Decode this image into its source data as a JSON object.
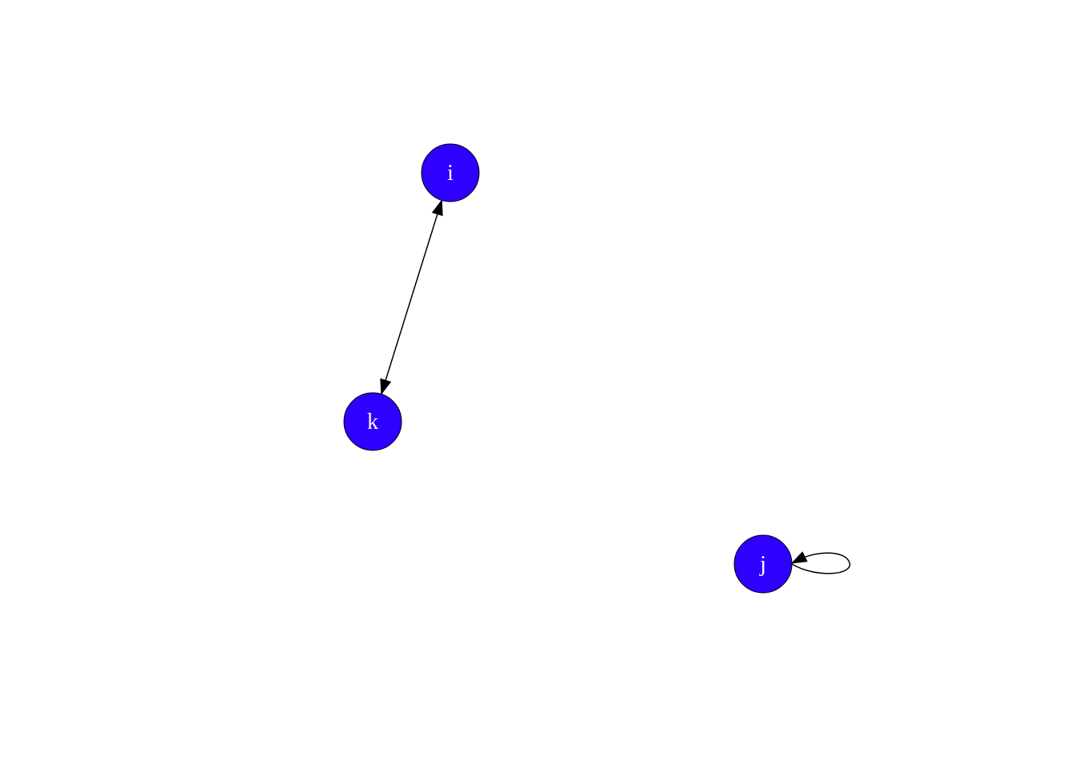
{
  "graph": {
    "directed": true,
    "node_fill": "#2f00ff",
    "node_stroke": "#000000",
    "label_color": "#ffffff",
    "edge_color": "#000000",
    "nodes": [
      {
        "id": "i",
        "label": "i"
      },
      {
        "id": "k",
        "label": "k"
      },
      {
        "id": "j",
        "label": "j"
      }
    ],
    "edges": [
      {
        "from": "i",
        "to": "k"
      },
      {
        "from": "k",
        "to": "i"
      },
      {
        "from": "j",
        "to": "j"
      }
    ]
  }
}
